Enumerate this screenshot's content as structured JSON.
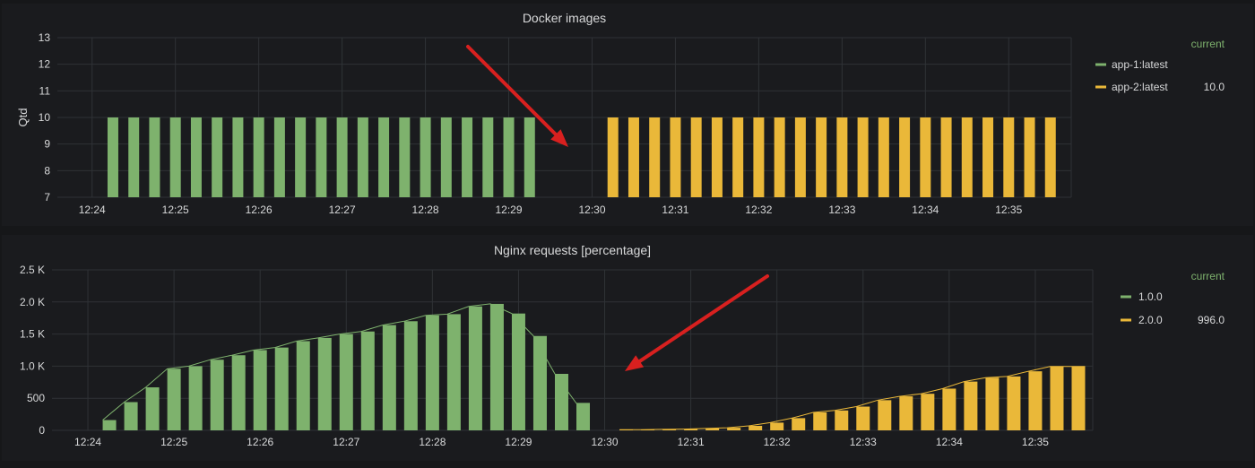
{
  "colors": {
    "background": "#161719",
    "panel": "#1a1b1e",
    "grid": "#2f3236",
    "text": "#d8d9da",
    "legend_header": "#7eb26d",
    "green": "#7eb26d",
    "yellow": "#eab839",
    "arrow": "#d8201f"
  },
  "chart_data": [
    {
      "type": "bar",
      "title": "Docker images",
      "ylabel": "Qtd",
      "xlabel": "",
      "ylim": [
        7,
        13
      ],
      "yticks": [
        7,
        8,
        9,
        10,
        11,
        12,
        13
      ],
      "ytick_labels": [
        "7",
        "8",
        "9",
        "10",
        "11",
        "12",
        "13"
      ],
      "x_time_range": [
        "12:23:35",
        "12:35:45"
      ],
      "xticks": [
        "12:24",
        "12:25",
        "12:26",
        "12:27",
        "12:28",
        "12:29",
        "12:30",
        "12:31",
        "12:32",
        "12:33",
        "12:34",
        "12:35"
      ],
      "grid": true,
      "legend": {
        "position": "right",
        "header": "current",
        "entries": [
          {
            "name": "app-1:latest",
            "color": "#7eb26d",
            "current": ""
          },
          {
            "name": "app-2:latest",
            "color": "#eab839",
            "current": "10.0"
          }
        ]
      },
      "series": [
        {
          "name": "app-1:latest",
          "color": "#7eb26d",
          "x": [
            "12:24:15",
            "12:24:30",
            "12:24:45",
            "12:25:00",
            "12:25:15",
            "12:25:30",
            "12:25:45",
            "12:26:00",
            "12:26:15",
            "12:26:30",
            "12:26:45",
            "12:27:00",
            "12:27:15",
            "12:27:30",
            "12:27:45",
            "12:28:00",
            "12:28:15",
            "12:28:30",
            "12:28:45",
            "12:29:00",
            "12:29:15"
          ],
          "values": [
            10,
            10,
            10,
            10,
            10,
            10,
            10,
            10,
            10,
            10,
            10,
            10,
            10,
            10,
            10,
            10,
            10,
            10,
            10,
            10,
            10
          ]
        },
        {
          "name": "app-2:latest",
          "color": "#eab839",
          "x": [
            "12:30:15",
            "12:30:30",
            "12:30:45",
            "12:31:00",
            "12:31:15",
            "12:31:30",
            "12:31:45",
            "12:32:00",
            "12:32:15",
            "12:32:30",
            "12:32:45",
            "12:33:00",
            "12:33:15",
            "12:33:30",
            "12:33:45",
            "12:34:00",
            "12:34:15",
            "12:34:30",
            "12:34:45",
            "12:35:00",
            "12:35:15",
            "12:35:30"
          ],
          "values": [
            10,
            10,
            10,
            10,
            10,
            10,
            10,
            10,
            10,
            10,
            10,
            10,
            10,
            10,
            10,
            10,
            10,
            10,
            10,
            10,
            10,
            10
          ]
        }
      ]
    },
    {
      "type": "bar",
      "title": "Nginx requests [percentage]",
      "ylabel": "",
      "xlabel": "",
      "ylim": [
        0,
        2500
      ],
      "yticks": [
        0,
        500,
        1000,
        1500,
        2000,
        2500
      ],
      "ytick_labels": [
        "0",
        "500",
        "1.0 K",
        "1.5 K",
        "2.0 K",
        "2.5 K"
      ],
      "x_time_range": [
        "12:23:35",
        "12:35:40"
      ],
      "xticks": [
        "12:24",
        "12:25",
        "12:26",
        "12:27",
        "12:28",
        "12:29",
        "12:30",
        "12:31",
        "12:32",
        "12:33",
        "12:34",
        "12:35"
      ],
      "grid": true,
      "legend": {
        "position": "right",
        "header": "current",
        "entries": [
          {
            "name": "1.0.0",
            "color": "#7eb26d",
            "current": ""
          },
          {
            "name": "2.0.0",
            "color": "#eab839",
            "current": "996.0"
          }
        ]
      },
      "series": [
        {
          "name": "1.0.0",
          "color": "#7eb26d",
          "x": [
            "12:24:15",
            "12:24:30",
            "12:24:45",
            "12:25:00",
            "12:25:15",
            "12:25:30",
            "12:25:45",
            "12:26:00",
            "12:26:15",
            "12:26:30",
            "12:26:45",
            "12:27:00",
            "12:27:15",
            "12:27:30",
            "12:27:45",
            "12:28:00",
            "12:28:15",
            "12:28:30",
            "12:28:45",
            "12:29:00",
            "12:29:15",
            "12:29:30",
            "12:29:45"
          ],
          "values": [
            160,
            440,
            670,
            960,
            1000,
            1100,
            1170,
            1250,
            1290,
            1390,
            1440,
            1500,
            1540,
            1640,
            1700,
            1790,
            1810,
            1930,
            1970,
            1820,
            1470,
            880,
            420
          ]
        },
        {
          "name": "2.0.0",
          "color": "#eab839",
          "x": [
            "12:30:15",
            "12:30:30",
            "12:30:45",
            "12:31:00",
            "12:31:15",
            "12:31:30",
            "12:31:45",
            "12:32:00",
            "12:32:15",
            "12:32:30",
            "12:32:45",
            "12:33:00",
            "12:33:15",
            "12:33:30",
            "12:33:45",
            "12:34:00",
            "12:34:15",
            "12:34:30",
            "12:34:45",
            "12:35:00",
            "12:35:15",
            "12:35:30"
          ],
          "values": [
            10,
            10,
            15,
            20,
            30,
            40,
            70,
            120,
            190,
            280,
            310,
            370,
            470,
            530,
            570,
            650,
            760,
            820,
            840,
            920,
            996,
            996
          ]
        }
      ]
    }
  ]
}
